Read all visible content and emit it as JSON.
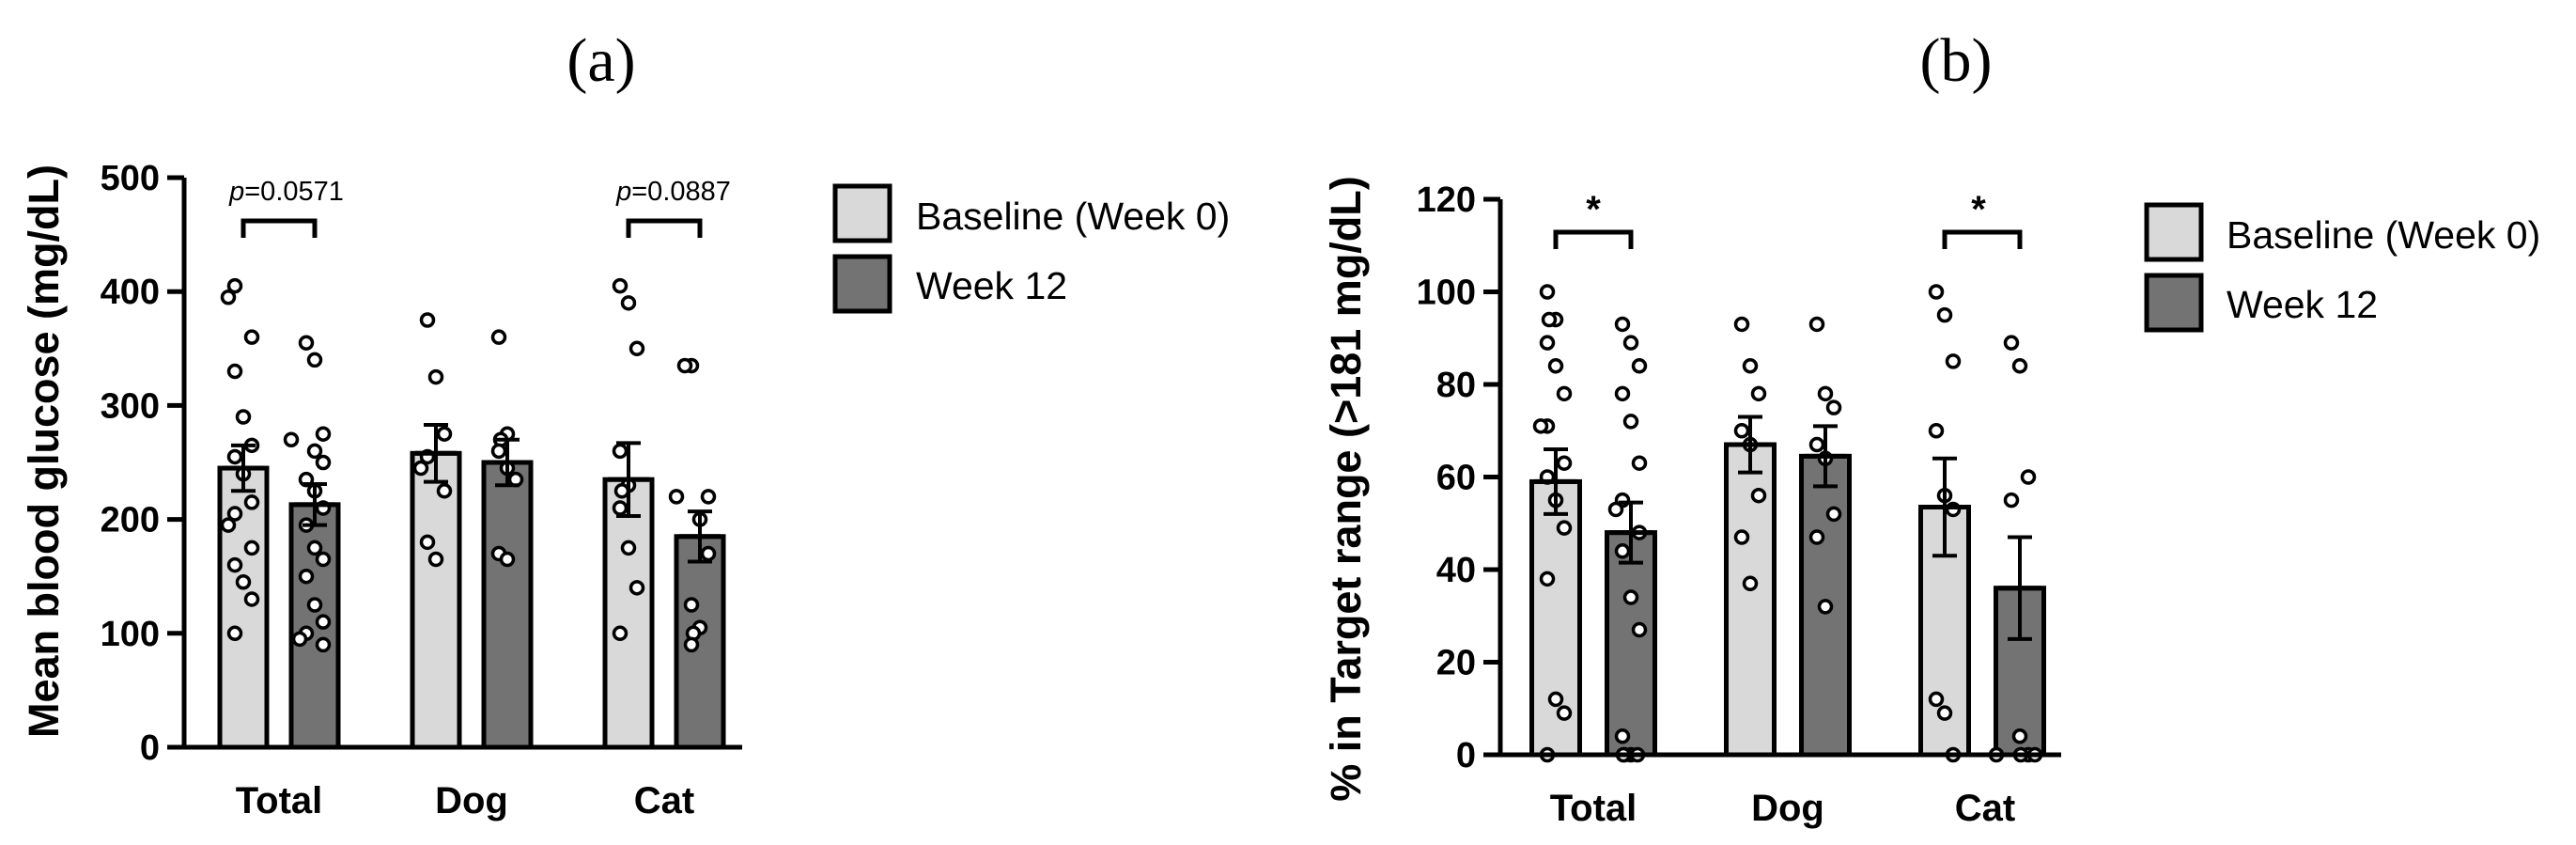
{
  "colors": {
    "baseline": "#d9d9d9",
    "week12": "#737373",
    "outline": "#000000"
  },
  "chart_data": [
    {
      "type": "bar",
      "panel_label": "(a)",
      "ylabel": "Mean blood glucose (mg/dL)",
      "ylim": [
        0,
        500
      ],
      "yticks": [
        0,
        100,
        200,
        300,
        400,
        500
      ],
      "categories": [
        "Total",
        "Dog",
        "Cat"
      ],
      "legend": {
        "position": "right"
      },
      "series": [
        {
          "name": "Baseline (Week 0)",
          "values": [
            245,
            258,
            235
          ],
          "sem": [
            20,
            25,
            32
          ],
          "points": [
            [
              405,
              395,
              360,
              330,
              290,
              265,
              255,
              240,
              215,
              205,
              195,
              175,
              160,
              145,
              130,
              100
            ],
            [
              375,
              325,
              275,
              255,
              245,
              225,
              180,
              165
            ],
            [
              405,
              390,
              350,
              260,
              230,
              225,
              210,
              175,
              140,
              100
            ]
          ]
        },
        {
          "name": "Week 12",
          "values": [
            213,
            250,
            185
          ],
          "sem": [
            18,
            20,
            22
          ],
          "points": [
            [
              355,
              340,
              275,
              270,
              260,
              250,
              235,
              225,
              210,
              195,
              175,
              165,
              150,
              125,
              110,
              100,
              95,
              90
            ],
            [
              360,
              275,
              270,
              260,
              245,
              235,
              170,
              165
            ],
            [
              335,
              335,
              220,
              220,
              200,
              170,
              125,
              105,
              100,
              90
            ]
          ]
        }
      ],
      "annotations": [
        {
          "category": "Total",
          "text": "p=0.0571",
          "prefix": "p",
          "value": "=0.0571"
        },
        {
          "category": "Cat",
          "text": "p=0.0887",
          "prefix": "p",
          "value": "=0.0887"
        }
      ]
    },
    {
      "type": "bar",
      "panel_label": "(b)",
      "ylabel": "% in Target range (>181 mg/dL)",
      "ylim": [
        0,
        120
      ],
      "yticks": [
        0,
        20,
        40,
        60,
        80,
        100,
        120
      ],
      "categories": [
        "Total",
        "Dog",
        "Cat"
      ],
      "legend": {
        "position": "right"
      },
      "series": [
        {
          "name": "Baseline (Week 0)",
          "values": [
            59,
            67,
            53.5
          ],
          "sem": [
            7,
            6,
            10.5
          ],
          "points": [
            [
              100,
              94,
              94,
              89,
              84,
              78,
              71,
              71,
              63,
              60,
              55,
              49,
              38,
              12,
              9,
              0
            ],
            [
              93,
              84,
              78,
              70,
              67,
              56,
              47,
              37
            ],
            [
              100,
              95,
              85,
              70,
              56,
              53,
              12,
              9,
              0
            ]
          ]
        },
        {
          "name": "Week 12",
          "values": [
            48,
            64.5,
            36
          ],
          "sem": [
            6.5,
            6.5,
            11
          ],
          "points": [
            [
              93,
              89,
              84,
              78,
              72,
              63,
              55,
              53,
              48,
              44,
              34,
              27,
              4,
              0,
              0,
              0,
              0
            ],
            [
              93,
              78,
              75,
              67,
              64,
              52,
              47,
              32
            ],
            [
              89,
              84,
              60,
              55,
              4,
              0,
              0,
              0,
              0
            ]
          ]
        }
      ],
      "annotations": [
        {
          "category": "Total",
          "text": "*"
        },
        {
          "category": "Cat",
          "text": "*"
        }
      ]
    }
  ]
}
